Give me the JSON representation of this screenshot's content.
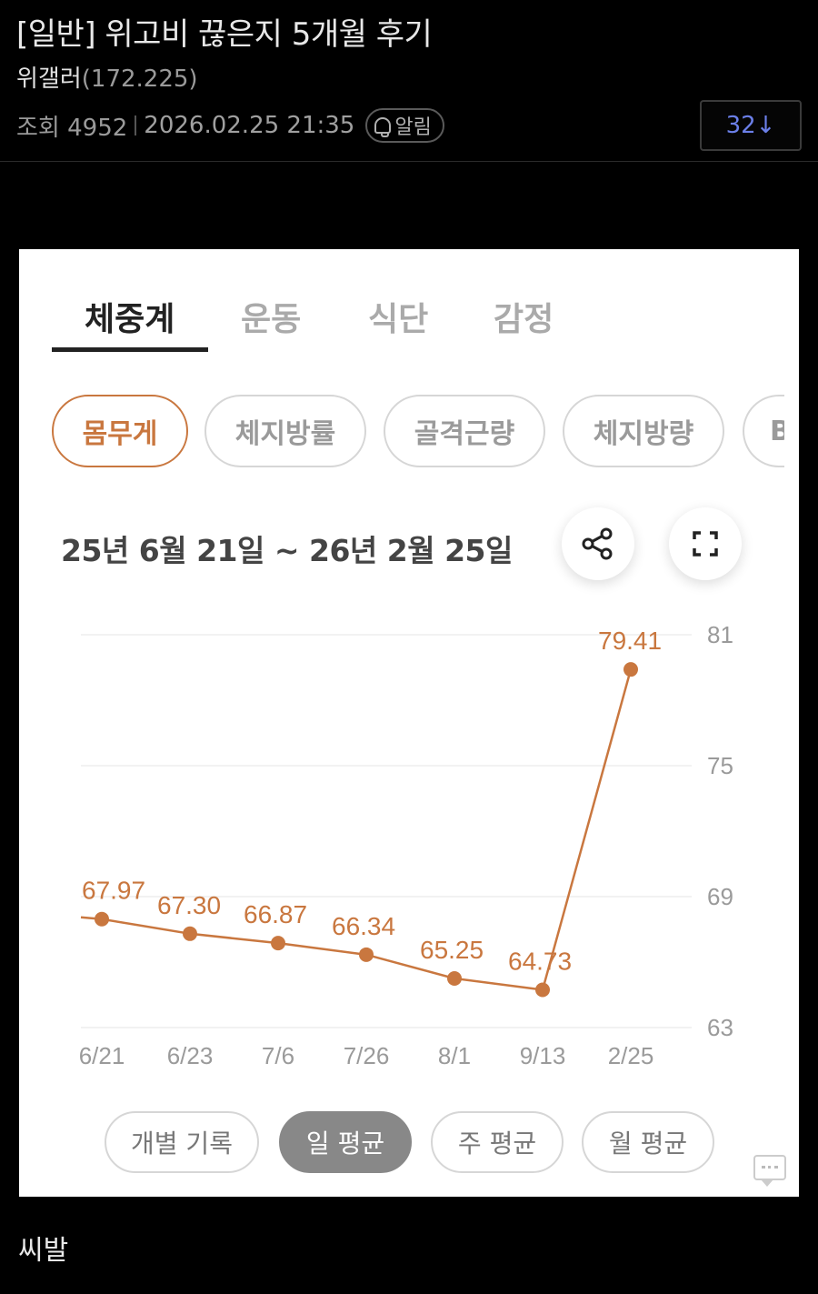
{
  "post": {
    "title": "[일반] 위고비 끊은지 5개월 후기",
    "author": "위갤러",
    "author_ip": "(172.225)",
    "views_label": "조회 4952",
    "timestamp": "2026.02.25 21:35",
    "notify_label": "알림",
    "comment_count": "32↓",
    "body": "씨발"
  },
  "app": {
    "tabs": [
      {
        "label": "체중계",
        "active": true
      },
      {
        "label": "운동",
        "active": false
      },
      {
        "label": "식단",
        "active": false
      },
      {
        "label": "감정",
        "active": false
      }
    ],
    "chips": [
      {
        "label": "몸무게",
        "active": true
      },
      {
        "label": "체지방률",
        "active": false
      },
      {
        "label": "골격근량",
        "active": false
      },
      {
        "label": "체지방량",
        "active": false
      },
      {
        "label": "B",
        "active": false
      }
    ],
    "date_range": "25년 6월 21일 ~ 26년 2월 25일",
    "share_icon": "share-icon",
    "fullscreen_icon": "fullscreen-icon",
    "view_modes": [
      {
        "label": "개별 기록",
        "active": false
      },
      {
        "label": "일 평균",
        "active": true
      },
      {
        "label": "주 평균",
        "active": false
      },
      {
        "label": "월 평균",
        "active": false
      }
    ],
    "accent_color": "#c9773f"
  },
  "chart_data": {
    "type": "line",
    "categories": [
      "6/21",
      "6/23",
      "7/6",
      "7/26",
      "8/1",
      "9/13",
      "2/25"
    ],
    "values": [
      67.97,
      67.3,
      66.87,
      66.34,
      65.25,
      64.73,
      79.41
    ],
    "data_labels": [
      "67.97",
      "67.30",
      "66.87",
      "66.34",
      "65.25",
      "64.73",
      "79.41"
    ],
    "y_ticks": [
      "81",
      "75",
      "69",
      "63"
    ],
    "ylim": [
      63,
      81
    ],
    "y_axis_side": "right",
    "grid": true,
    "color": "#c9773f"
  }
}
